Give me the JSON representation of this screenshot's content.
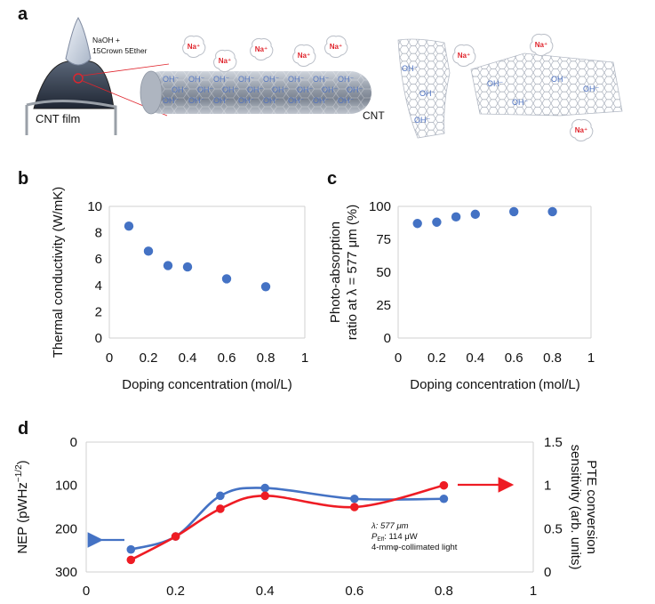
{
  "panel_labels": {
    "a": "a",
    "b": "b",
    "c": "c",
    "d": "d"
  },
  "colors": {
    "blue": "#4472c4",
    "red": "#ee1c24",
    "naplus": "#e0252d",
    "oh": "#4a6fc0"
  },
  "schematic": {
    "droplet_label_line1": "NaOH +",
    "droplet_label_line2": "15Crown 5Ether",
    "film_label": "CNT film",
    "tube_label": "CNT",
    "na_ion": "Na⁺",
    "oh_ion": "OH⁻"
  },
  "chart_data": [
    {
      "id": "b",
      "type": "scatter",
      "title": "",
      "xlabel": "Doping concentration (mol/L)",
      "ylabel": "Thermal conductivity (W/mK)",
      "xlim": [
        0,
        1
      ],
      "ylim": [
        0,
        10
      ],
      "xticks": [
        "0",
        "0.2",
        "0.4",
        "0.6",
        "0.8",
        "1"
      ],
      "yticks": [
        "0",
        "2",
        "4",
        "6",
        "8",
        "10"
      ],
      "x": [
        0.1,
        0.2,
        0.3,
        0.4,
        0.6,
        0.8
      ],
      "y": [
        8.5,
        6.6,
        5.5,
        5.4,
        4.5,
        3.9
      ],
      "color": "#4472c4"
    },
    {
      "id": "c",
      "type": "scatter",
      "title": "",
      "xlabel": "Doping concentration (mol/L)",
      "ylabel_line1": "Photo-absorption",
      "ylabel_line2": "ratio at λ = 577 μm (%)",
      "xlim": [
        0,
        1
      ],
      "ylim": [
        0,
        100
      ],
      "xticks": [
        "0",
        "0.2",
        "0.4",
        "0.6",
        "0.8",
        "1"
      ],
      "yticks": [
        "0",
        "25",
        "50",
        "75",
        "100"
      ],
      "x": [
        0.1,
        0.2,
        0.3,
        0.4,
        0.6,
        0.8
      ],
      "y": [
        87,
        88,
        92,
        94,
        96,
        96
      ],
      "color": "#4472c4"
    },
    {
      "id": "d",
      "type": "line",
      "xlabel": "",
      "xlim": [
        0,
        1
      ],
      "xticks": [
        "0",
        "0.2",
        "0.4",
        "0.6",
        "0.8",
        "1"
      ],
      "left_axis": {
        "label_prefix": "NEP (pWHz",
        "label_sup": "−1/2",
        "label_suffix": ")",
        "ylim_top": 0,
        "ylim_bottom": 300,
        "ticks": [
          "0",
          "100",
          "200",
          "300"
        ]
      },
      "right_axis": {
        "label_line1": "PTE conversion",
        "label_line2": "sensitivity (arb. units)",
        "ylim": [
          0,
          1.5
        ],
        "ticks": [
          "0",
          "0.5",
          "1",
          "1.5"
        ]
      },
      "series": [
        {
          "name": "NEP",
          "axis": "left",
          "color": "#4472c4",
          "x": [
            0.1,
            0.2,
            0.3,
            0.4,
            0.6,
            0.8
          ],
          "values": [
            248,
            218,
            124,
            106,
            131,
            131
          ]
        },
        {
          "name": "PTE conversion sensitivity",
          "axis": "right",
          "color": "#ee1c24",
          "x": [
            0.1,
            0.2,
            0.3,
            0.4,
            0.6,
            0.8
          ],
          "values": [
            0.14,
            0.41,
            0.73,
            0.88,
            0.75,
            1.0
          ]
        }
      ],
      "annotation": {
        "line1": "λ: 577 μm",
        "line2_main": "P",
        "line2_sub": "Eff",
        "line2_rest": ": 114 μW",
        "line3": "4-mmφ-collimated light"
      }
    }
  ]
}
